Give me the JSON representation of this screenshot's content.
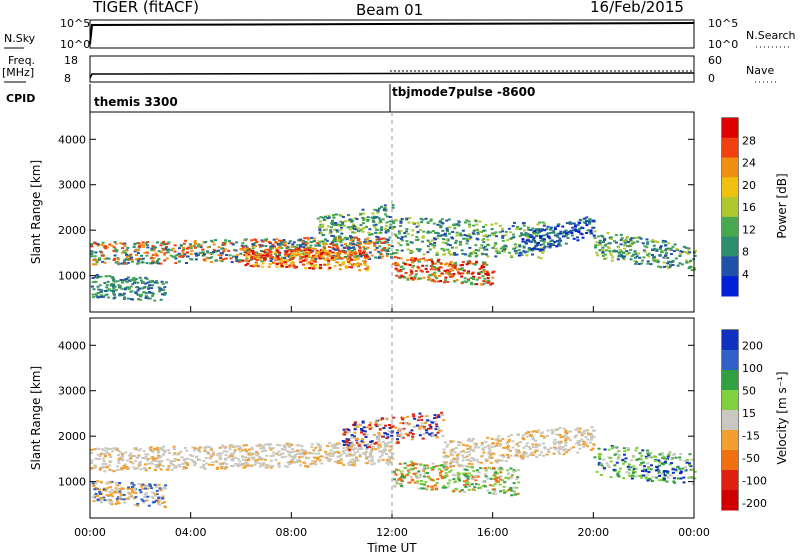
{
  "header": {
    "radar": "TIGER (fitACF)",
    "beam": "Beam 01",
    "date": "16/Feb/2015"
  },
  "summary": {
    "nsky_label": "N.Sky",
    "nsky_ticks": [
      "10^5",
      "10^0"
    ],
    "nsearch_label": "N.Search",
    "nsearch_ticks": [
      "10^5",
      "10^0"
    ],
    "freq_label": "Freq.",
    "freq_unit": "[MHz]",
    "freq_ticks": [
      "18",
      "8"
    ],
    "nave_label": "Nave",
    "nave_ticks": [
      "60",
      "0"
    ],
    "cpid_label": "CPID",
    "cpid_modes": [
      {
        "name": "themis 3300",
        "start_hour": 0
      },
      {
        "name": "tbjmode7pulse -8600",
        "start_hour": 12
      }
    ]
  },
  "chart_data": [
    {
      "type": "heatmap",
      "quantity": "Power",
      "ylabel": "Slant Range [km]",
      "ylim": [
        200,
        4600
      ],
      "yticks": [
        "1000",
        "2000",
        "3000",
        "4000"
      ],
      "xlim": [
        0,
        24
      ],
      "colorbar_label": "Power [dB]",
      "colorbar_ticks": [
        "4",
        "8",
        "12",
        "16",
        "20",
        "24",
        "28"
      ],
      "colorbar_colors": [
        "#0020d8",
        "#2050a8",
        "#2c8c6c",
        "#48a850",
        "#b0c830",
        "#f0c010",
        "#f09010",
        "#f04010",
        "#e00000"
      ]
    },
    {
      "type": "heatmap",
      "quantity": "Velocity",
      "ylabel": "Slant Range [km]",
      "ylim": [
        200,
        4600
      ],
      "yticks": [
        "1000",
        "2000",
        "3000",
        "4000"
      ],
      "xlim": [
        0,
        24
      ],
      "xlabel": "Time UT",
      "xticks": [
        "00:00",
        "04:00",
        "08:00",
        "12:00",
        "16:00",
        "20:00",
        "00:00"
      ],
      "colorbar_label": "Velocity [m s⁻¹]",
      "colorbar_ticks": [
        "200",
        "100",
        "50",
        "15",
        "-15",
        "-50",
        "-100",
        "-200"
      ],
      "colorbar_colors": [
        "#1030c0",
        "#3060c8",
        "#30a040",
        "#80d040",
        "#c8c8c0",
        "#f0a030",
        "#f07010",
        "#e02010",
        "#d00000"
      ]
    }
  ]
}
